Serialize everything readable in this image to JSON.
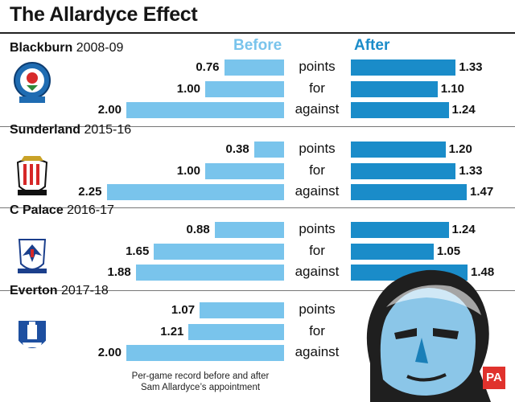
{
  "title": "The Allardyce Effect",
  "column_headers": {
    "before": "Before",
    "after": "After"
  },
  "metrics": [
    "points",
    "for",
    "against"
  ],
  "footnote": [
    "Per-game record before and after",
    "Sam Allardyce’s appointment"
  ],
  "colors": {
    "before": "#79c4ec",
    "after": "#1a8cc9"
  },
  "logo": "PA",
  "chart_data": {
    "type": "bar",
    "title": "The Allardyce Effect",
    "subtitle": "Per-game record before and after Sam Allardyce’s appointment",
    "categories": [
      "points",
      "for",
      "against"
    ],
    "panels": [
      {
        "team": "Blackburn",
        "season": "2008-09",
        "before": [
          0.76,
          1.0,
          2.0
        ],
        "after": [
          1.33,
          1.1,
          1.24
        ]
      },
      {
        "team": "Sunderland",
        "season": "2015-16",
        "before": [
          0.38,
          1.0,
          2.25
        ],
        "after": [
          1.2,
          1.33,
          1.47
        ]
      },
      {
        "team": "C Palace",
        "season": "2016-17",
        "before": [
          0.88,
          1.65,
          1.88
        ],
        "after": [
          1.24,
          1.05,
          1.48
        ]
      },
      {
        "team": "Everton",
        "season": "2017-18",
        "before": [
          1.07,
          1.21,
          2.0
        ],
        "after": [
          null,
          null,
          null
        ]
      }
    ],
    "series": [
      {
        "name": "Before",
        "color": "#79c4ec"
      },
      {
        "name": "After",
        "color": "#1a8cc9"
      }
    ],
    "xlim": [
      0,
      2.5
    ],
    "legend": "top"
  }
}
